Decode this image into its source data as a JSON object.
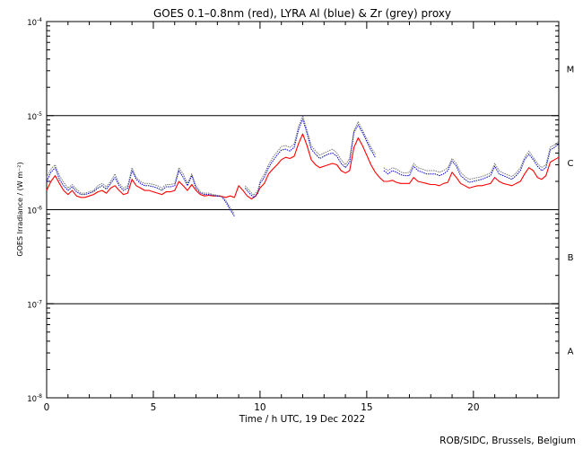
{
  "chart_data": {
    "type": "line",
    "title": "GOES 0.1–0.8nm (red), LYRA Al (blue) & Zr (grey) proxy",
    "xlabel": "Time / h UTC, 19 Dec 2022",
    "ylabel": "GOES Irradiance / (W m⁻²)",
    "credit": "ROB/SIDC, Brussels, Belgium",
    "xlim": [
      0,
      24
    ],
    "ylim_log10": [
      -8,
      -4
    ],
    "log_y": true,
    "x_ticks": [
      {
        "v": 0,
        "label": "0"
      },
      {
        "v": 5,
        "label": "5"
      },
      {
        "v": 10,
        "label": "10"
      },
      {
        "v": 15,
        "label": "15"
      },
      {
        "v": 20,
        "label": "20"
      }
    ],
    "y_ticks": [
      {
        "exp": -8,
        "base": "10",
        "sup": "-8"
      },
      {
        "exp": -7,
        "base": "10",
        "sup": "-7"
      },
      {
        "exp": -6,
        "base": "10",
        "sup": "-6"
      },
      {
        "exp": -5,
        "base": "10",
        "sup": "-5"
      },
      {
        "exp": -4,
        "base": "10",
        "sup": "-4"
      }
    ],
    "flare_lines_log10": [
      -7,
      -6,
      -5
    ],
    "flare_classes": [
      {
        "label": "A",
        "center_log10": -7.5
      },
      {
        "label": "B",
        "center_log10": -6.5
      },
      {
        "label": "C",
        "center_log10": -5.5
      },
      {
        "label": "M",
        "center_log10": -4.5
      }
    ],
    "series": [
      {
        "color": "#ff0000",
        "x": [
          0.0,
          0.2,
          0.4,
          0.6,
          0.8,
          1.0,
          1.2,
          1.4,
          1.6,
          1.8,
          2.0,
          2.2,
          2.4,
          2.6,
          2.8,
          3.0,
          3.2,
          3.4,
          3.6,
          3.8,
          4.0,
          4.2,
          4.4,
          4.6,
          4.8,
          5.0,
          5.2,
          5.4,
          5.6,
          5.8,
          6.0,
          6.2,
          6.4,
          6.6,
          6.8,
          7.0,
          7.2,
          7.4,
          7.6,
          7.8,
          8.0,
          8.2,
          8.4,
          8.6,
          8.8,
          9.0,
          9.2,
          9.4,
          9.6,
          9.8,
          10.0,
          10.2,
          10.4,
          10.6,
          10.8,
          11.0,
          11.2,
          11.4,
          11.6,
          11.8,
          12.0,
          12.2,
          12.4,
          12.6,
          12.8,
          13.0,
          13.2,
          13.4,
          13.6,
          13.8,
          14.0,
          14.2,
          14.4,
          14.6,
          14.8,
          15.0,
          15.2,
          15.4,
          15.6,
          15.8,
          16.0,
          16.2,
          16.4,
          16.6,
          16.8,
          17.0,
          17.2,
          17.4,
          17.6,
          17.8,
          18.0,
          18.2,
          18.4,
          18.6,
          18.8,
          19.0,
          19.2,
          19.4,
          19.6,
          19.8,
          20.0,
          20.2,
          20.4,
          20.6,
          20.8,
          21.0,
          21.2,
          21.4,
          21.6,
          21.8,
          22.0,
          22.2,
          22.4,
          22.6,
          22.8,
          23.0,
          23.2,
          23.4,
          23.6,
          23.8,
          24.0
        ],
        "y": [
          1.6e-06,
          2e-06,
          2.3e-06,
          1.9e-06,
          1.6e-06,
          1.45e-06,
          1.6e-06,
          1.4e-06,
          1.35e-06,
          1.35e-06,
          1.4e-06,
          1.45e-06,
          1.55e-06,
          1.6e-06,
          1.5e-06,
          1.7e-06,
          1.8e-06,
          1.6e-06,
          1.45e-06,
          1.5e-06,
          2.1e-06,
          1.8e-06,
          1.7e-06,
          1.6e-06,
          1.6e-06,
          1.55e-06,
          1.5e-06,
          1.45e-06,
          1.55e-06,
          1.55e-06,
          1.6e-06,
          2e-06,
          1.8e-06,
          1.6e-06,
          1.85e-06,
          1.6e-06,
          1.45e-06,
          1.4e-06,
          1.42e-06,
          1.4e-06,
          1.4e-06,
          1.38e-06,
          1.35e-06,
          1.4e-06,
          1.35e-06,
          1.8e-06,
          1.6e-06,
          1.4e-06,
          1.3e-06,
          1.4e-06,
          1.7e-06,
          1.9e-06,
          2.4e-06,
          2.7e-06,
          3e-06,
          3.4e-06,
          3.6e-06,
          3.5e-06,
          3.7e-06,
          5e-06,
          6.4e-06,
          4.8e-06,
          3.4e-06,
          3e-06,
          2.8e-06,
          2.9e-06,
          3e-06,
          3.1e-06,
          3e-06,
          2.6e-06,
          2.45e-06,
          2.6e-06,
          4.6e-06,
          5.8e-06,
          4.8e-06,
          3.8e-06,
          3e-06,
          2.5e-06,
          2.2e-06,
          2e-06,
          2e-06,
          2.05e-06,
          1.95e-06,
          1.9e-06,
          1.9e-06,
          1.9e-06,
          2.2e-06,
          2e-06,
          1.95e-06,
          1.9e-06,
          1.85e-06,
          1.85e-06,
          1.8e-06,
          1.9e-06,
          1.95e-06,
          2.5e-06,
          2.2e-06,
          1.9e-06,
          1.8e-06,
          1.7e-06,
          1.75e-06,
          1.8e-06,
          1.8e-06,
          1.85e-06,
          1.9e-06,
          2.2e-06,
          2e-06,
          1.9e-06,
          1.85e-06,
          1.8e-06,
          1.9e-06,
          2e-06,
          2.4e-06,
          2.8e-06,
          2.6e-06,
          2.2e-06,
          2.1e-06,
          2.3e-06,
          3.2e-06,
          3.4e-06,
          3.6e-06
        ]
      },
      {
        "color": "#0000cc",
        "x": [
          0.0,
          0.2,
          0.4,
          0.6,
          0.8,
          1.0,
          1.2,
          1.4,
          1.6,
          1.8,
          2.0,
          2.2,
          2.4,
          2.6,
          2.8,
          3.0,
          3.2,
          3.4,
          3.6,
          3.8,
          4.0,
          4.2,
          4.4,
          4.6,
          4.8,
          5.0,
          5.2,
          5.4,
          5.6,
          5.8,
          6.0,
          6.2,
          6.4,
          6.6,
          6.8,
          7.0,
          7.2,
          7.4,
          7.6,
          7.8,
          8.0,
          8.2,
          8.4,
          8.6,
          8.8,
          null,
          9.3,
          9.5,
          9.7,
          9.9,
          10.0,
          10.2,
          10.4,
          10.6,
          10.8,
          11.0,
          11.2,
          11.4,
          11.6,
          11.8,
          12.0,
          12.2,
          12.4,
          12.6,
          12.8,
          13.0,
          13.2,
          13.4,
          13.6,
          13.8,
          14.0,
          14.2,
          14.4,
          14.6,
          14.8,
          15.0,
          15.2,
          15.4,
          null,
          15.8,
          16.0,
          16.2,
          16.4,
          16.6,
          16.8,
          17.0,
          17.2,
          17.4,
          17.6,
          17.8,
          18.0,
          18.2,
          18.4,
          18.6,
          18.8,
          19.0,
          19.2,
          19.4,
          19.6,
          19.8,
          20.0,
          20.2,
          20.4,
          20.6,
          20.8,
          21.0,
          21.2,
          21.4,
          21.6,
          21.8,
          22.0,
          22.2,
          22.4,
          22.6,
          22.8,
          23.0,
          23.2,
          23.4,
          23.6,
          23.8,
          24.0
        ],
        "y": [
          2e-06,
          2.5e-06,
          2.8e-06,
          2.1e-06,
          1.8e-06,
          1.6e-06,
          1.75e-06,
          1.55e-06,
          1.45e-06,
          1.45e-06,
          1.5e-06,
          1.55e-06,
          1.7e-06,
          1.8e-06,
          1.65e-06,
          1.9e-06,
          2.2e-06,
          1.8e-06,
          1.6e-06,
          1.7e-06,
          2.6e-06,
          2.1e-06,
          1.9e-06,
          1.8e-06,
          1.8e-06,
          1.75e-06,
          1.7e-06,
          1.6e-06,
          1.75e-06,
          1.75e-06,
          1.8e-06,
          2.6e-06,
          2.2e-06,
          1.8e-06,
          2.3e-06,
          1.7e-06,
          1.5e-06,
          1.45e-06,
          1.45e-06,
          1.42e-06,
          1.4e-06,
          1.38e-06,
          1.2e-06,
          1e-06,
          8.5e-07,
          null,
          1.7e-06,
          1.5e-06,
          1.35e-06,
          1.5e-06,
          1.9e-06,
          2.2e-06,
          2.8e-06,
          3.3e-06,
          3.8e-06,
          4.3e-06,
          4.4e-06,
          4.2e-06,
          4.6e-06,
          7e-06,
          9.2e-06,
          6.5e-06,
          4.4e-06,
          3.9e-06,
          3.5e-06,
          3.7e-06,
          3.9e-06,
          4e-06,
          3.7e-06,
          3.1e-06,
          2.8e-06,
          3.2e-06,
          6.6e-06,
          8e-06,
          6.6e-06,
          5.3e-06,
          4.3e-06,
          3.6e-06,
          null,
          2.6e-06,
          2.4e-06,
          2.6e-06,
          2.5e-06,
          2.35e-06,
          2.3e-06,
          2.3e-06,
          2.9e-06,
          2.6e-06,
          2.5e-06,
          2.4e-06,
          2.4e-06,
          2.4e-06,
          2.3e-06,
          2.4e-06,
          2.6e-06,
          3.3e-06,
          2.9e-06,
          2.3e-06,
          2.1e-06,
          1.95e-06,
          2e-06,
          2.05e-06,
          2.1e-06,
          2.2e-06,
          2.3e-06,
          2.9e-06,
          2.4e-06,
          2.3e-06,
          2.2e-06,
          2.1e-06,
          2.3e-06,
          2.6e-06,
          3.4e-06,
          3.9e-06,
          3.4e-06,
          2.9e-06,
          2.6e-06,
          2.8e-06,
          4.3e-06,
          4.6e-06,
          5e-06
        ]
      },
      {
        "color": "#777777",
        "x": [
          0.0,
          0.2,
          0.4,
          0.6,
          0.8,
          1.0,
          1.2,
          1.4,
          1.6,
          1.8,
          2.0,
          2.2,
          2.4,
          2.6,
          2.8,
          3.0,
          3.2,
          3.4,
          3.6,
          3.8,
          4.0,
          4.2,
          4.4,
          4.6,
          4.8,
          5.0,
          5.2,
          5.4,
          5.6,
          5.8,
          6.0,
          6.2,
          6.4,
          6.6,
          6.8,
          7.0,
          7.2,
          7.4,
          7.6,
          7.8,
          8.0,
          8.2,
          8.4,
          8.6,
          8.8,
          null,
          9.3,
          9.5,
          9.7,
          9.9,
          10.0,
          10.2,
          10.4,
          10.6,
          10.8,
          11.0,
          11.2,
          11.4,
          11.6,
          11.8,
          12.0,
          12.2,
          12.4,
          12.6,
          12.8,
          13.0,
          13.2,
          13.4,
          13.6,
          13.8,
          14.0,
          14.2,
          14.4,
          14.6,
          14.8,
          15.0,
          15.2,
          15.4,
          null,
          15.8,
          16.0,
          16.2,
          16.4,
          16.6,
          16.8,
          17.0,
          17.2,
          17.4,
          17.6,
          17.8,
          18.0,
          18.2,
          18.4,
          18.6,
          18.8,
          19.0,
          19.2,
          19.4,
          19.6,
          19.8,
          20.0,
          20.2,
          20.4,
          20.6,
          20.8,
          21.0,
          21.2,
          21.4,
          21.6,
          21.8,
          22.0,
          22.2,
          22.4,
          22.6,
          22.8,
          23.0,
          23.2,
          23.4,
          23.6,
          23.8,
          24.0
        ],
        "y": [
          2.2e-06,
          2.7e-06,
          3e-06,
          2.3e-06,
          1.95e-06,
          1.7e-06,
          1.85e-06,
          1.65e-06,
          1.5e-06,
          1.5e-06,
          1.55e-06,
          1.6e-06,
          1.8e-06,
          1.9e-06,
          1.75e-06,
          2e-06,
          2.4e-06,
          1.9e-06,
          1.7e-06,
          1.8e-06,
          2.8e-06,
          2.2e-06,
          2e-06,
          1.9e-06,
          1.9e-06,
          1.85e-06,
          1.8e-06,
          1.7e-06,
          1.85e-06,
          1.85e-06,
          1.9e-06,
          2.8e-06,
          2.4e-06,
          1.9e-06,
          2.4e-06,
          1.8e-06,
          1.55e-06,
          1.5e-06,
          1.5e-06,
          1.45e-06,
          1.42e-06,
          1.4e-06,
          1.25e-06,
          1.05e-06,
          9e-07,
          null,
          1.8e-06,
          1.6e-06,
          1.42e-06,
          1.6e-06,
          2e-06,
          2.4e-06,
          3e-06,
          3.6e-06,
          4.1e-06,
          4.7e-06,
          4.8e-06,
          4.6e-06,
          5e-06,
          7.6e-06,
          1e-05,
          7e-06,
          4.8e-06,
          4.2e-06,
          3.8e-06,
          4e-06,
          4.2e-06,
          4.4e-06,
          4e-06,
          3.4e-06,
          3e-06,
          3.5e-06,
          7e-06,
          8.6e-06,
          7e-06,
          5.7e-06,
          4.6e-06,
          3.9e-06,
          null,
          2.8e-06,
          2.6e-06,
          2.8e-06,
          2.7e-06,
          2.5e-06,
          2.45e-06,
          2.5e-06,
          3.1e-06,
          2.8e-06,
          2.7e-06,
          2.6e-06,
          2.6e-06,
          2.6e-06,
          2.5e-06,
          2.6e-06,
          2.8e-06,
          3.5e-06,
          3.1e-06,
          2.5e-06,
          2.25e-06,
          2.1e-06,
          2.15e-06,
          2.2e-06,
          2.25e-06,
          2.35e-06,
          2.45e-06,
          3.1e-06,
          2.6e-06,
          2.45e-06,
          2.35e-06,
          2.25e-06,
          2.45e-06,
          2.8e-06,
          3.6e-06,
          4.2e-06,
          3.6e-06,
          3.1e-06,
          2.8e-06,
          3e-06,
          4.6e-06,
          4.9e-06,
          5.3e-06
        ]
      }
    ]
  }
}
